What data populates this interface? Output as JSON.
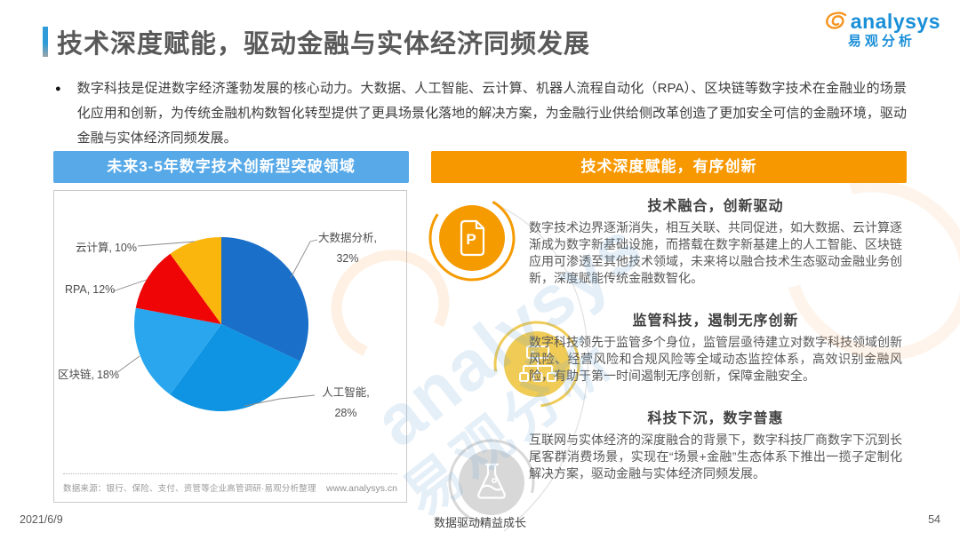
{
  "header": {
    "title": "技术深度赋能，驱动金融与实体经济同频发展",
    "logo": {
      "brand_en": "analysys",
      "brand_cn": "易观分析"
    }
  },
  "intro": {
    "bullet": "●",
    "text": "数字科技是促进数字经济蓬勃发展的核心动力。大数据、人工智能、云计算、机器人流程自动化（RPA）、区块链等数字技术在金融业的场景化应用和创新，为传统金融机构数智化转型提供了更具场景化落地的解决方案，为金融行业供给侧改革创造了更加安全可信的金融环境，驱动金融与实体经济同频发展。"
  },
  "left_panel": {
    "header": "未来3-5年数字技术创新型突破领域",
    "source": "数据来源：银行、保险、支付、资管等企业高管调研·易观分析整理",
    "website": "www.analysys.cn"
  },
  "chart_data": {
    "type": "pie",
    "title": "未来3-5年数字技术创新型突破领域",
    "categories": [
      "大数据分析",
      "人工智能",
      "区块链",
      "RPA",
      "云计算"
    ],
    "values": [
      32,
      28,
      18,
      12,
      10
    ],
    "unit": "%",
    "colors": [
      "#1a6fc9",
      "#0e94e2",
      "#2aa6ee",
      "#ef0505",
      "#fbb60d"
    ],
    "start_angle_deg": 0,
    "direction": "clockwise",
    "label_format": "{name}, {value}%",
    "legend_position": "none"
  },
  "right_panel": {
    "header": "技术深度赋能，有序创新",
    "sections": [
      {
        "icon": "document-p-icon",
        "badge_color": "#f59b00",
        "title": "技术融合，创新驱动",
        "body": "数字技术边界逐渐消失，相互关联、共同促进，如大数据、云计算逐渐成为数字新基础设施，而搭载在数字新基建上的人工智能、区块链应用可渗透至其他技术领域，未来将以融合技术生态驱动金融业务创新，深度赋能传统金融数智化。"
      },
      {
        "icon": "sitemap-icon",
        "badge_color": "#f0cb55",
        "title": "监管科技，遏制无序创新",
        "body": "数字科技领先于监管多个身位，监管层亟待建立对数字科技领域创新风险、经营风险和合规风险等全域动态监控体系，高效识别金融风险，有助于第一时间遏制无序创新，保障金融安全。"
      },
      {
        "icon": "flask-icon",
        "badge_color": "#d8d8d8",
        "title": "科技下沉，数字普惠",
        "body": "互联网与实体经济的深度融合的背景下，数字科技厂商数字下沉到长尾客群消费场景，实现在“场景+金融”生态体系下推出一揽子定制化解决方案，驱动金融与实体经济同频发展。"
      }
    ]
  },
  "watermark": {
    "line1": "analysys",
    "line2": "易观分析"
  },
  "footer": {
    "date": "2021/6/9",
    "slogan": "数据驱动精益成长",
    "page": "54"
  },
  "colors": {
    "blue_header": "#57a9e8",
    "orange_header": "#f79800",
    "accent_blue": "#2f9bd8",
    "brand_blue": "#1a8fd8",
    "brand_orange": "#f7941e"
  }
}
